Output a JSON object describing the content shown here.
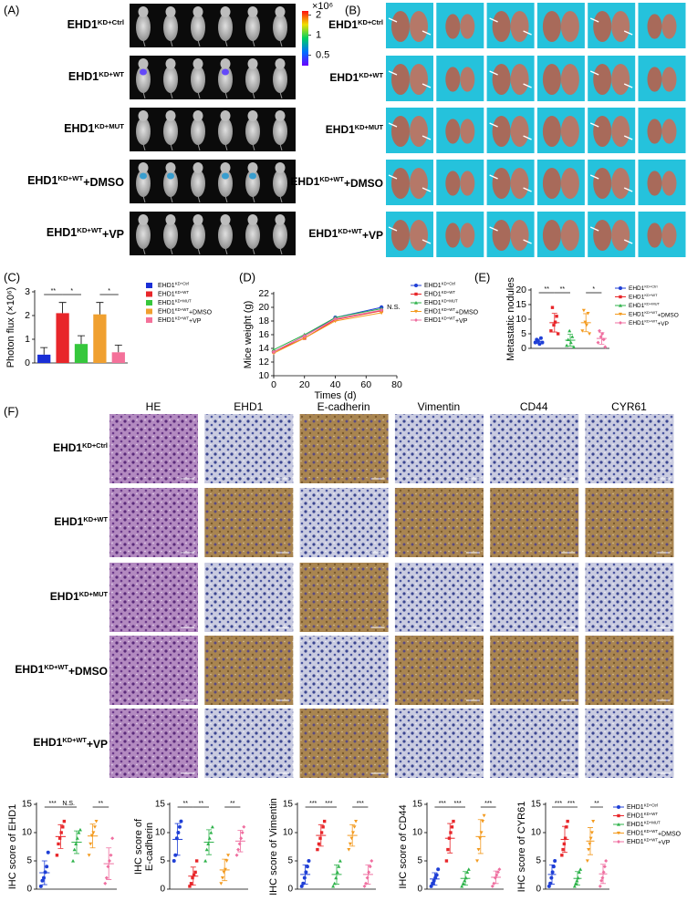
{
  "panels": [
    "(A)",
    "(B)",
    "(C)",
    "(D)",
    "(E)",
    "(F)"
  ],
  "groups": [
    {
      "name": "EHD1",
      "sup": "KD+Ctrl"
    },
    {
      "name": "EHD1",
      "sup": "KD+WT"
    },
    {
      "name": "EHD1",
      "sup": "KD+MUT"
    },
    {
      "name": "EHD1",
      "sup": "KD+WT",
      "after": "+DMSO"
    },
    {
      "name": "EHD1",
      "sup": "KD+WT",
      "after": "+VP"
    }
  ],
  "colorbar": {
    "label": "×10⁶",
    "log": true,
    "lim": [
      0.35,
      2.8
    ],
    "ticks": [
      0.5,
      1,
      2
    ]
  },
  "stains": [
    "HE",
    "EHD1",
    "E-cadherin",
    "Vimentin",
    "CD44",
    "CYR61"
  ],
  "chart_data": [
    {
      "type": "bar",
      "ylabel": "Photon flux (×10⁶)",
      "ylim": [
        0,
        3
      ],
      "yticks": [
        0,
        1,
        2,
        3
      ],
      "annotations": [
        "**",
        "*",
        "*"
      ],
      "series": [
        {
          "name": "EHD1",
          "sup": "KD+Ctrl",
          "color": "#1a2fd6",
          "values": [
            0.35
          ],
          "errors": [
            0.3
          ]
        },
        {
          "name": "EHD1",
          "sup": "KD+WT",
          "color": "#e8262a",
          "values": [
            2.1
          ],
          "errors": [
            0.45
          ]
        },
        {
          "name": "EHD1",
          "sup": "KD+MUT",
          "color": "#36c73c",
          "values": [
            0.8
          ],
          "errors": [
            0.35
          ]
        },
        {
          "name": "EHD1",
          "sup": "KD+WT",
          "after": "+DMSO",
          "color": "#f0a030",
          "values": [
            2.05
          ],
          "errors": [
            0.5
          ]
        },
        {
          "name": "EHD1",
          "sup": "KD+WT",
          "after": "+VP",
          "color": "#f4719a",
          "values": [
            0.45
          ],
          "errors": [
            0.3
          ]
        }
      ]
    },
    {
      "type": "line",
      "ylabel": "Mice weight (g)",
      "xlabel": "Times (d)",
      "x": [
        0,
        20,
        40,
        70
      ],
      "xlim": [
        0,
        80
      ],
      "xticks": [
        0,
        20,
        40,
        60,
        80
      ],
      "ylim": [
        10,
        22
      ],
      "yticks": [
        10,
        12,
        14,
        16,
        18,
        20,
        22
      ],
      "annotation": "N.S.",
      "series": [
        {
          "name": "EHD1",
          "sup": "KD+Ctrl",
          "color": "#1f3fd6",
          "values": [
            13.5,
            15.8,
            18.5,
            20
          ]
        },
        {
          "name": "EHD1",
          "sup": "KD+WT",
          "color": "#e8262a",
          "values": [
            13.5,
            15.5,
            18.2,
            19.5
          ]
        },
        {
          "name": "EHD1",
          "sup": "KD+MUT",
          "color": "#2db24a",
          "values": [
            13.8,
            16,
            18.5,
            19.8
          ]
        },
        {
          "name": "EHD1",
          "sup": "KD+WT",
          "after": "+DMSO",
          "color": "#f39a1e",
          "values": [
            13.3,
            15.5,
            18,
            19.2
          ]
        },
        {
          "name": "EHD1",
          "sup": "KD+WT",
          "after": "+VP",
          "color": "#ef6fa0",
          "values": [
            13.5,
            15.8,
            18.3,
            19.6
          ]
        }
      ]
    },
    {
      "type": "dot",
      "ylabel": "Metastatic nodules",
      "ylim": [
        0,
        20
      ],
      "yticks": [
        0,
        5,
        10,
        15,
        20
      ],
      "annotations": [
        "**",
        "**",
        "*"
      ],
      "series": [
        {
          "name": "EHD1",
          "sup": "KD+Ctrl",
          "color": "#1f3fd6",
          "values": [
            2,
            3,
            2.5,
            1.5,
            3.5,
            2
          ],
          "mean": 2.4,
          "sd": 0.7
        },
        {
          "name": "EHD1",
          "sup": "KD+WT",
          "color": "#e8262a",
          "values": [
            6,
            14,
            8,
            9,
            11,
            5
          ],
          "mean": 8.8,
          "sd": 3.2
        },
        {
          "name": "EHD1",
          "sup": "KD+MUT",
          "color": "#2db24a",
          "values": [
            1,
            3,
            6,
            2,
            4,
            0.5
          ],
          "mean": 2.8,
          "sd": 2
        },
        {
          "name": "EHD1",
          "sup": "KD+WT",
          "after": "+DMSO",
          "color": "#f39a1e",
          "values": [
            6,
            13,
            9,
            8,
            12,
            5
          ],
          "mean": 8.8,
          "sd": 3.1
        },
        {
          "name": "EHD1",
          "sup": "KD+WT",
          "after": "+VP",
          "color": "#ef6fa0",
          "values": [
            2,
            6,
            4,
            5,
            3,
            0.5
          ],
          "mean": 3.4,
          "sd": 2
        }
      ]
    },
    {
      "type": "dot",
      "ylabel": [
        "IHC score of EHD1"
      ],
      "ylim": [
        0,
        15
      ],
      "yticks": [
        0,
        5,
        10,
        15
      ],
      "annotations": [
        "***",
        "N.S.",
        "**"
      ],
      "series": [
        {
          "color": "#1f3fd6",
          "values": [
            0.5,
            1.5,
            2,
            3,
            4,
            6.5
          ],
          "mean": 2.9,
          "sd": 2.1
        },
        {
          "color": "#e8262a",
          "values": [
            6,
            8,
            9,
            10,
            11,
            12
          ],
          "mean": 9.3,
          "sd": 2.1
        },
        {
          "color": "#2db24a",
          "values": [
            5,
            7,
            8,
            9,
            10,
            10.5
          ],
          "mean": 8.3,
          "sd": 2
        },
        {
          "color": "#f39a1e",
          "values": [
            6,
            8,
            9.5,
            10,
            11,
            12
          ],
          "mean": 9.4,
          "sd": 2.1
        },
        {
          "color": "#ef6fa0",
          "values": [
            1,
            2,
            4,
            5,
            6,
            9
          ],
          "mean": 4.5,
          "sd": 2.8
        }
      ]
    },
    {
      "type": "dot",
      "ylabel": [
        "IHC score of",
        "E-cadherin"
      ],
      "ylim": [
        0,
        15
      ],
      "yticks": [
        0,
        5,
        10,
        15
      ],
      "annotations": [
        "**",
        "**",
        "**"
      ],
      "series": [
        {
          "color": "#1f3fd6",
          "values": [
            5,
            6,
            9,
            10,
            11,
            12
          ],
          "mean": 8.8,
          "sd": 2.8
        },
        {
          "color": "#e8262a",
          "values": [
            0.5,
            1,
            2,
            2.5,
            3,
            5
          ],
          "mean": 2.3,
          "sd": 1.6
        },
        {
          "color": "#2db24a",
          "values": [
            5,
            7,
            8,
            9,
            10,
            11
          ],
          "mean": 8.3,
          "sd": 2.2
        },
        {
          "color": "#f39a1e",
          "values": [
            1,
            2,
            3,
            3.5,
            5,
            6
          ],
          "mean": 3.4,
          "sd": 1.9
        },
        {
          "color": "#ef6fa0",
          "values": [
            6,
            7,
            8,
            9,
            10,
            11
          ],
          "mean": 8.5,
          "sd": 1.9
        }
      ]
    },
    {
      "type": "dot",
      "ylabel": [
        "IHC score of Vimentin"
      ],
      "ylim": [
        0,
        15
      ],
      "yticks": [
        0,
        5,
        10,
        15
      ],
      "annotations": [
        "***",
        "***",
        "***"
      ],
      "series": [
        {
          "color": "#1f3fd6",
          "values": [
            0.5,
            1,
            2,
            3,
            4,
            5
          ],
          "mean": 2.6,
          "sd": 1.7
        },
        {
          "color": "#e8262a",
          "values": [
            7,
            8,
            9,
            10,
            11,
            12
          ],
          "mean": 9.5,
          "sd": 1.9
        },
        {
          "color": "#2db24a",
          "values": [
            0.5,
            1,
            2,
            3,
            4,
            5
          ],
          "mean": 2.6,
          "sd": 1.7
        },
        {
          "color": "#f39a1e",
          "values": [
            7,
            8,
            9,
            10,
            11,
            12
          ],
          "mean": 9.5,
          "sd": 1.9
        },
        {
          "color": "#ef6fa0",
          "values": [
            0.5,
            1,
            2,
            3,
            4,
            5
          ],
          "mean": 2.6,
          "sd": 1.7
        }
      ]
    },
    {
      "type": "dot",
      "ylabel": [
        "IHC score of CD44"
      ],
      "ylim": [
        0,
        15
      ],
      "yticks": [
        0,
        5,
        10,
        15
      ],
      "annotations": [
        "***",
        "***",
        "***"
      ],
      "series": [
        {
          "color": "#1f3fd6",
          "values": [
            0.5,
            1,
            1.5,
            2,
            2.5,
            3.5
          ],
          "mean": 1.8,
          "sd": 1.1
        },
        {
          "color": "#e8262a",
          "values": [
            5,
            7,
            9,
            10,
            11,
            12
          ],
          "mean": 9,
          "sd": 2.6
        },
        {
          "color": "#2db24a",
          "values": [
            0.5,
            1,
            1.5,
            2,
            3,
            3.5
          ],
          "mean": 1.9,
          "sd": 1.2
        },
        {
          "color": "#f39a1e",
          "values": [
            5,
            7,
            9,
            10,
            12,
            13
          ],
          "mean": 9.3,
          "sd": 3
        },
        {
          "color": "#ef6fa0",
          "values": [
            0.5,
            1,
            2,
            2.5,
            3,
            3.5
          ],
          "mean": 2.1,
          "sd": 1.1
        }
      ]
    },
    {
      "type": "dot",
      "ylabel": [
        "IHC score of CYR61"
      ],
      "ylim": [
        0,
        15
      ],
      "yticks": [
        0,
        5,
        10,
        15
      ],
      "annotations": [
        "***",
        "***",
        "**"
      ],
      "series": [
        {
          "name": "EHD1",
          "sup": "KD+Ctrl",
          "color": "#1f3fd6",
          "values": [
            0.5,
            1,
            2,
            3,
            4,
            5
          ],
          "mean": 2.6,
          "sd": 1.7
        },
        {
          "name": "EHD1",
          "sup": "KD+WT",
          "color": "#e8262a",
          "values": [
            6,
            7,
            8,
            9,
            11,
            12
          ],
          "mean": 8.8,
          "sd": 2.3
        },
        {
          "name": "EHD1",
          "sup": "KD+MUT",
          "color": "#2db24a",
          "values": [
            0.5,
            1,
            1.5,
            2,
            3,
            3.5
          ],
          "mean": 1.9,
          "sd": 1.2
        },
        {
          "name": "EHD1",
          "sup": "KD+WT",
          "after": "+DMSO",
          "color": "#f39a1e",
          "values": [
            5,
            7,
            8,
            9,
            10,
            12
          ],
          "mean": 8.5,
          "sd": 2.4
        },
        {
          "name": "EHD1",
          "sup": "KD+WT",
          "after": "+VP",
          "color": "#ef6fa0",
          "values": [
            0.5,
            1.5,
            2,
            3,
            4,
            5
          ],
          "mean": 2.7,
          "sd": 1.7
        }
      ]
    }
  ]
}
